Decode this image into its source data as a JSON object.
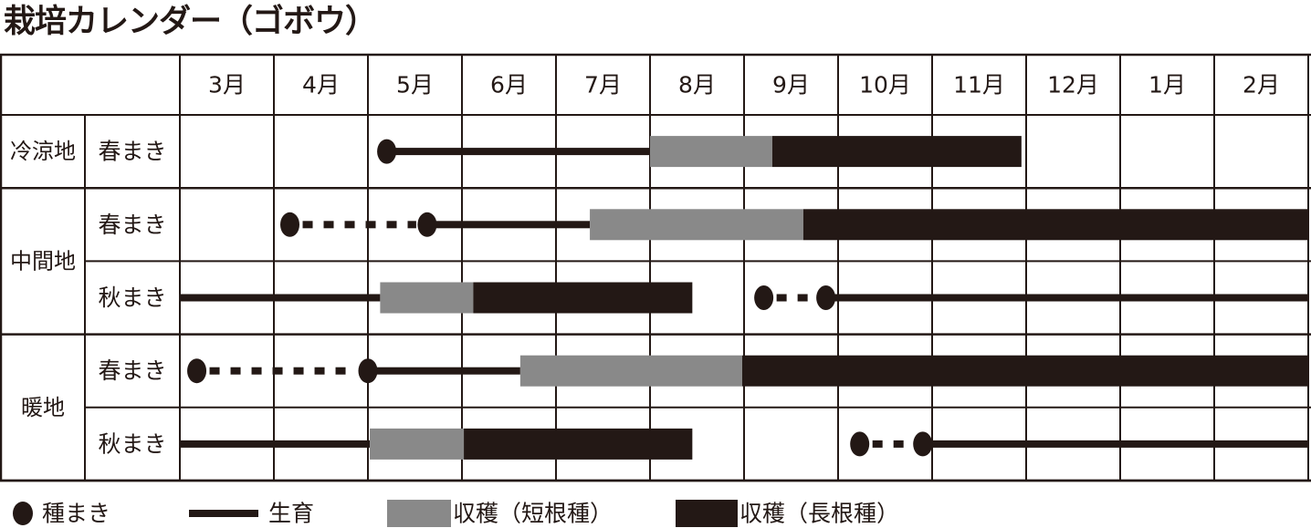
{
  "title": "栽培カレンダー（ゴボウ）",
  "colors": {
    "line": "#231815",
    "short_harvest": "#898989",
    "long_harvest": "#231815"
  },
  "chart_data": {
    "type": "gantt",
    "title": "栽培カレンダー（ゴボウ）",
    "months": [
      "3月",
      "4月",
      "5月",
      "6月",
      "7月",
      "8月",
      "9月",
      "10月",
      "11月",
      "12月",
      "1月",
      "2月"
    ],
    "x_scale_note": "month number, 13 = 1月, 14 = 2月 of following year; x range [3, 15]",
    "xlim": [
      3,
      15
    ],
    "rows": [
      {
        "region": "冷涼地",
        "type": "春まき",
        "sow": [
          5.2
        ],
        "sow_window": [],
        "grow": [
          [
            5.2,
            8.0
          ]
        ],
        "harvest_short": [
          [
            8.0,
            9.3
          ]
        ],
        "harvest_long": [
          [
            9.3,
            11.95
          ]
        ]
      },
      {
        "region": "中間地",
        "type": "春まき",
        "sow": [
          4.17,
          5.63
        ],
        "sow_window": [
          [
            4.17,
            5.63
          ]
        ],
        "grow": [
          [
            5.63,
            7.36
          ]
        ],
        "harvest_short": [
          [
            7.36,
            9.63
          ]
        ],
        "harvest_long": [
          [
            9.63,
            15
          ]
        ]
      },
      {
        "region": "中間地",
        "type": "秋まき",
        "sow": [
          9.21,
          9.87
        ],
        "sow_window": [
          [
            9.21,
            9.87
          ]
        ],
        "grow": [
          [
            3,
            5.13
          ],
          [
            9.87,
            15
          ]
        ],
        "harvest_short": [
          [
            5.13,
            6.12
          ]
        ],
        "harvest_long": [
          [
            6.12,
            8.45
          ]
        ]
      },
      {
        "region": "暖地",
        "type": "春まき",
        "sow": [
          3.18,
          5.0
        ],
        "sow_window": [
          [
            3.18,
            5.0
          ]
        ],
        "grow": [
          [
            5.0,
            6.62
          ]
        ],
        "harvest_short": [
          [
            6.62,
            8.98
          ]
        ],
        "harvest_long": [
          [
            8.98,
            15
          ]
        ]
      },
      {
        "region": "暖地",
        "type": "秋まき",
        "sow": [
          10.23,
          10.9
        ],
        "sow_window": [
          [
            10.23,
            10.9
          ]
        ],
        "grow": [
          [
            3,
            5.02
          ],
          [
            10.9,
            15
          ]
        ],
        "harvest_short": [
          [
            5.02,
            6.02
          ]
        ],
        "harvest_long": [
          [
            6.02,
            8.45
          ]
        ]
      }
    ],
    "regions": [
      {
        "label": "冷涼地",
        "rows": [
          0
        ]
      },
      {
        "label": "中間地",
        "rows": [
          1,
          2
        ]
      },
      {
        "label": "暖地",
        "rows": [
          3,
          4
        ]
      }
    ],
    "legend": [
      {
        "symbol": "dot",
        "label": "種まき"
      },
      {
        "symbol": "line",
        "label": "生育"
      },
      {
        "symbol": "gray-bar",
        "label": "収穫（短根種）"
      },
      {
        "symbol": "black-bar",
        "label": "収穫（長根種）"
      }
    ],
    "legend_position": "bottom",
    "grid": true
  }
}
